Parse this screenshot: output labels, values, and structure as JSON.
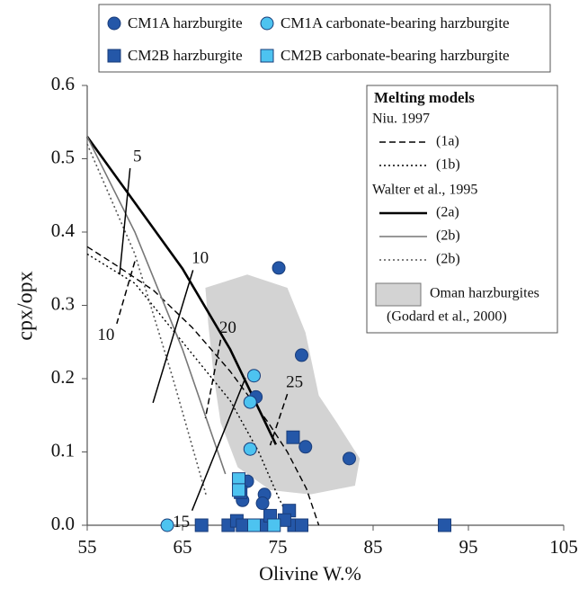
{
  "chart_data": {
    "type": "scatter",
    "x_label": "Olivine W.%",
    "y_label": "cpx/opx",
    "xlim": [
      55,
      105
    ],
    "ylim": [
      0,
      0.6
    ],
    "xticks": [
      55,
      65,
      75,
      85,
      95,
      105
    ],
    "yticks": [
      {
        "value": 0,
        "label": "0.0"
      },
      0.1,
      0.2,
      0.3,
      0.4,
      0.5,
      0.6
    ],
    "series": [
      {
        "name": "CM1A harzburgite",
        "color": "#2457a8",
        "marker": "circle",
        "x": [
          75.1,
          77.5,
          72.7,
          77.9,
          82.5,
          71.8,
          73.6,
          71.3,
          73.4
        ],
        "values": [
          0.351,
          0.232,
          0.175,
          0.107,
          0.091,
          0.06,
          0.042,
          0.034,
          0.03
        ]
      },
      {
        "name": "CM1A carbonate-bearing harzburgite",
        "color": "#4dc3f0",
        "marker": "circle",
        "x": [
          72.5,
          72.1,
          72.1,
          63.4
        ],
        "values": [
          0.204,
          0.168,
          0.104,
          0
        ]
      },
      {
        "name": "CM2B harzburgite",
        "color": "#2457a8",
        "marker": "square",
        "x": [
          76.6,
          67.0,
          69.8,
          70.7,
          71.1,
          71.3,
          73.7,
          74.2,
          76.2,
          76.7,
          77.5,
          92.5,
          75.7
        ],
        "values": [
          0.12,
          0,
          0,
          0.006,
          0.045,
          0,
          0,
          0.013,
          0.02,
          0,
          0,
          0,
          0.007
        ]
      },
      {
        "name": "CM2B carbonate-bearing harzburgite",
        "color": "#4dc3f0",
        "marker": "square",
        "x": [
          70.9,
          70.9,
          72.5,
          74.6
        ],
        "values": [
          0.063,
          0.048,
          0,
          0
        ]
      }
    ],
    "region": {
      "name": "Oman harzburgites",
      "source": "(Godard et al., 2000)",
      "color": "#d3d3d3",
      "x": [
        67.4,
        71.8,
        76.0,
        77.9,
        79.3,
        81.2,
        83.6,
        83.1,
        78.4,
        74.2,
        70.8,
        69.0,
        68.3,
        67.7
      ],
      "values": [
        0.324,
        0.342,
        0.324,
        0.263,
        0.177,
        0.14,
        0.091,
        0.054,
        0.042,
        0.048,
        0.079,
        0.14,
        0.201,
        0.275
      ]
    },
    "models_title": "Melting models",
    "model_groups": [
      {
        "name": "Niu. 1997",
        "lines": [
          {
            "name": "(1a)",
            "color": "#000000",
            "dash": "dashed",
            "width": 1.4,
            "x": [
              55,
              58,
              62,
              66,
              70,
              74,
              76,
              78,
              79.3
            ],
            "values": [
              0.38,
              0.355,
              0.32,
              0.27,
              0.21,
              0.14,
              0.1,
              0.05,
              0
            ]
          },
          {
            "name": "(1b)",
            "color": "#000000",
            "dash": "dotted",
            "width": 1.4,
            "x": [
              55,
              60,
              65,
              70,
              73,
              75,
              76.5
            ],
            "values": [
              0.37,
              0.33,
              0.25,
              0.17,
              0.1,
              0.04,
              0
            ]
          }
        ]
      },
      {
        "name": "Walter et al., 1995",
        "lines": [
          {
            "name": "(2a)",
            "color": "#000000",
            "dash": "solid",
            "width": 2.6,
            "x": [
              55,
              60,
              65,
              70,
              74.8
            ],
            "values": [
              0.53,
              0.44,
              0.35,
              0.24,
              0.11
            ]
          },
          {
            "name": "(2b)",
            "color": "#777777",
            "dash": "solid",
            "width": 1.6,
            "x": [
              55,
              60,
              65,
              69.5
            ],
            "values": [
              0.53,
              0.4,
              0.24,
              0.07
            ]
          },
          {
            "name": "(2b)",
            "color": "#555555",
            "dash": "dotted",
            "width": 1.6,
            "x": [
              55,
              60,
              64,
              67.5
            ],
            "values": [
              0.52,
              0.37,
              0.2,
              0.04
            ]
          }
        ]
      }
    ],
    "melt_lines": [
      {
        "label": "5",
        "dash": "solid",
        "label_at": "top",
        "x": [
          59.5,
          58.4
        ],
        "values": [
          0.487,
          0.342
        ]
      },
      {
        "label": "10",
        "dash": "dashed",
        "label_at": "bottom",
        "x": [
          60,
          58.1
        ],
        "values": [
          0.36,
          0.275
        ]
      },
      {
        "label": "10",
        "dash": "solid",
        "label_at": "top",
        "x": [
          66.1,
          61.9
        ],
        "values": [
          0.348,
          0.167
        ]
      },
      {
        "label": "20",
        "dash": "dashed",
        "label_at": "top",
        "x": [
          69,
          67.4
        ],
        "values": [
          0.253,
          0.146
        ]
      },
      {
        "label": "15",
        "dash": "solid",
        "label_at": "bottom",
        "x": [
          71.6,
          66
        ],
        "values": [
          0.201,
          0.02
        ]
      },
      {
        "label": "25",
        "dash": "dashed",
        "label_at": "top",
        "x": [
          76,
          74.2
        ],
        "values": [
          0.179,
          0.109
        ]
      }
    ]
  }
}
